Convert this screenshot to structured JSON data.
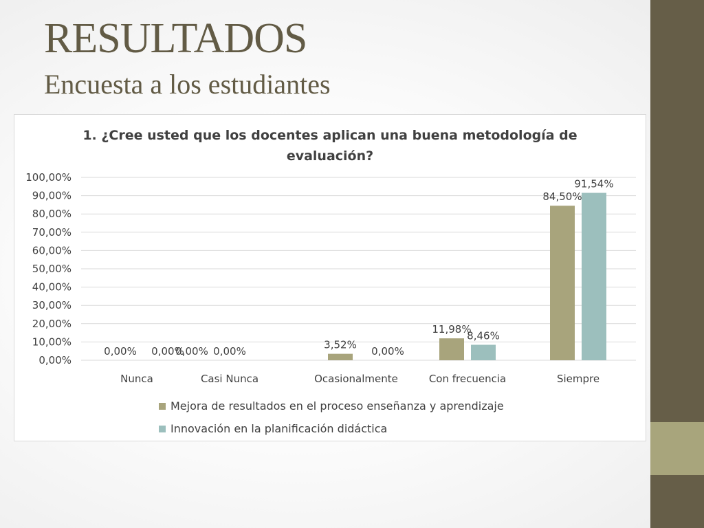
{
  "slide": {
    "title": "RESULTADOS",
    "subtitle": "Encuesta a los estudiantes"
  },
  "colors": {
    "sidebar": "#665e48",
    "sidebar_accent": "#a8a57c",
    "title_text": "#625b45",
    "series_1": "#a8a47c",
    "series_2": "#9cbfbd",
    "gridline": "#d9d9d9",
    "axis_text": "#404040"
  },
  "chart_data": {
    "type": "bar",
    "title": "1. ¿Cree usted que los docentes aplican una buena metodología de evaluación?",
    "title_lines": [
      "1. ¿Cree usted que los docentes aplican una buena metodología de",
      "evaluación?"
    ],
    "categories": [
      "Nunca",
      "Casi Nunca",
      "Ocasionalmente",
      "Con frecuencia",
      "Siempre"
    ],
    "series": [
      {
        "name": "Mejora de resultados en el proceso enseñanza y aprendizaje",
        "color": "#a8a47c",
        "values": [
          0.0,
          0.0,
          3.52,
          11.98,
          84.5
        ],
        "labels": [
          "0,00%",
          "0,00%",
          "3,52%",
          "11,98%",
          "84,50%"
        ]
      },
      {
        "name": "Innovación en la planificación didáctica",
        "color": "#9cbfbd",
        "values": [
          0.0,
          0.0,
          0.0,
          8.46,
          91.54
        ],
        "labels": [
          "0,00%",
          "0,00%",
          "0,00%",
          "8,46%",
          "91,54%"
        ]
      }
    ],
    "ylim": [
      0,
      100
    ],
    "y_ticks": [
      0,
      10,
      20,
      30,
      40,
      50,
      60,
      70,
      80,
      90,
      100
    ],
    "y_tick_labels": [
      "0,00%",
      "10,00%",
      "20,00%",
      "30,00%",
      "40,00%",
      "50,00%",
      "60,00%",
      "70,00%",
      "80,00%",
      "90,00%",
      "100,00%"
    ],
    "grid": true,
    "legend_position": "bottom",
    "xlabel": "",
    "ylabel": ""
  }
}
